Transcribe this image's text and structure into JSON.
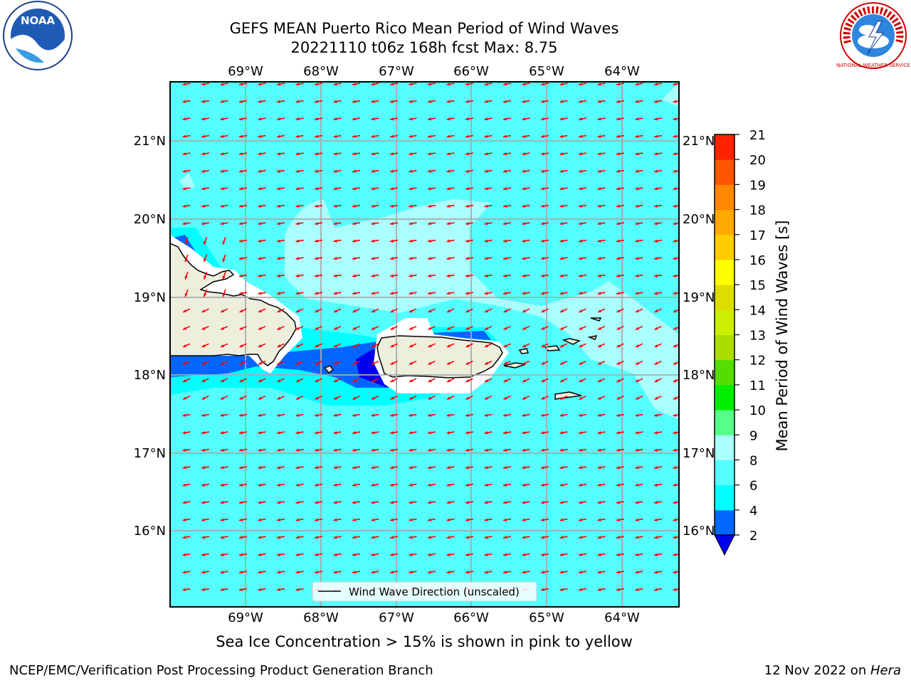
{
  "header": {
    "title_line1": "GEFS MEAN Puerto Rico Mean Period of Wind Waves",
    "title_line2": "20221110 t06z 168h fcst   Max: 8.75"
  },
  "logos": {
    "left": "NOAA",
    "right": "NATIONAL WEATHER SERVICE",
    "left_icon": "noaa-logo",
    "right_icon": "nws-logo"
  },
  "map": {
    "lon_labels": [
      "69°W",
      "68°W",
      "67°W",
      "66°W",
      "65°W",
      "64°W"
    ],
    "lat_labels": [
      "21°N",
      "20°N",
      "19°N",
      "18°N",
      "17°N",
      "16°N"
    ],
    "legend_label": "Wind Wave Direction (unscaled)",
    "ocean_color": "#55ffff",
    "land_color": "#eeeedd",
    "arrow_color": "#ff0000"
  },
  "colorbar": {
    "label": "Mean Period of Wind Waves [s]",
    "ticks": [
      "2",
      "4",
      "6",
      "8",
      "9",
      "10",
      "11",
      "12",
      "13",
      "14",
      "15",
      "16",
      "17",
      "18",
      "19",
      "20",
      "21"
    ],
    "colors": [
      "#0066ff",
      "#00ffff",
      "#55ffff",
      "#aaffff",
      "#55ff88",
      "#00ee00",
      "#55dd00",
      "#aadd00",
      "#ccee00",
      "#dddd00",
      "#ffff00",
      "#ffcc00",
      "#ffaa00",
      "#ff8800",
      "#ff5500",
      "#ff2200"
    ],
    "extend_color": "#0000ee"
  },
  "notes": {
    "ice": "Sea Ice Concentration > 15% is shown in pink to yellow"
  },
  "footer": {
    "left": "NCEP/EMC/Verification Post Processing Product Generation Branch",
    "right_date": "12 Nov 2022 on ",
    "right_host": "Hera"
  }
}
